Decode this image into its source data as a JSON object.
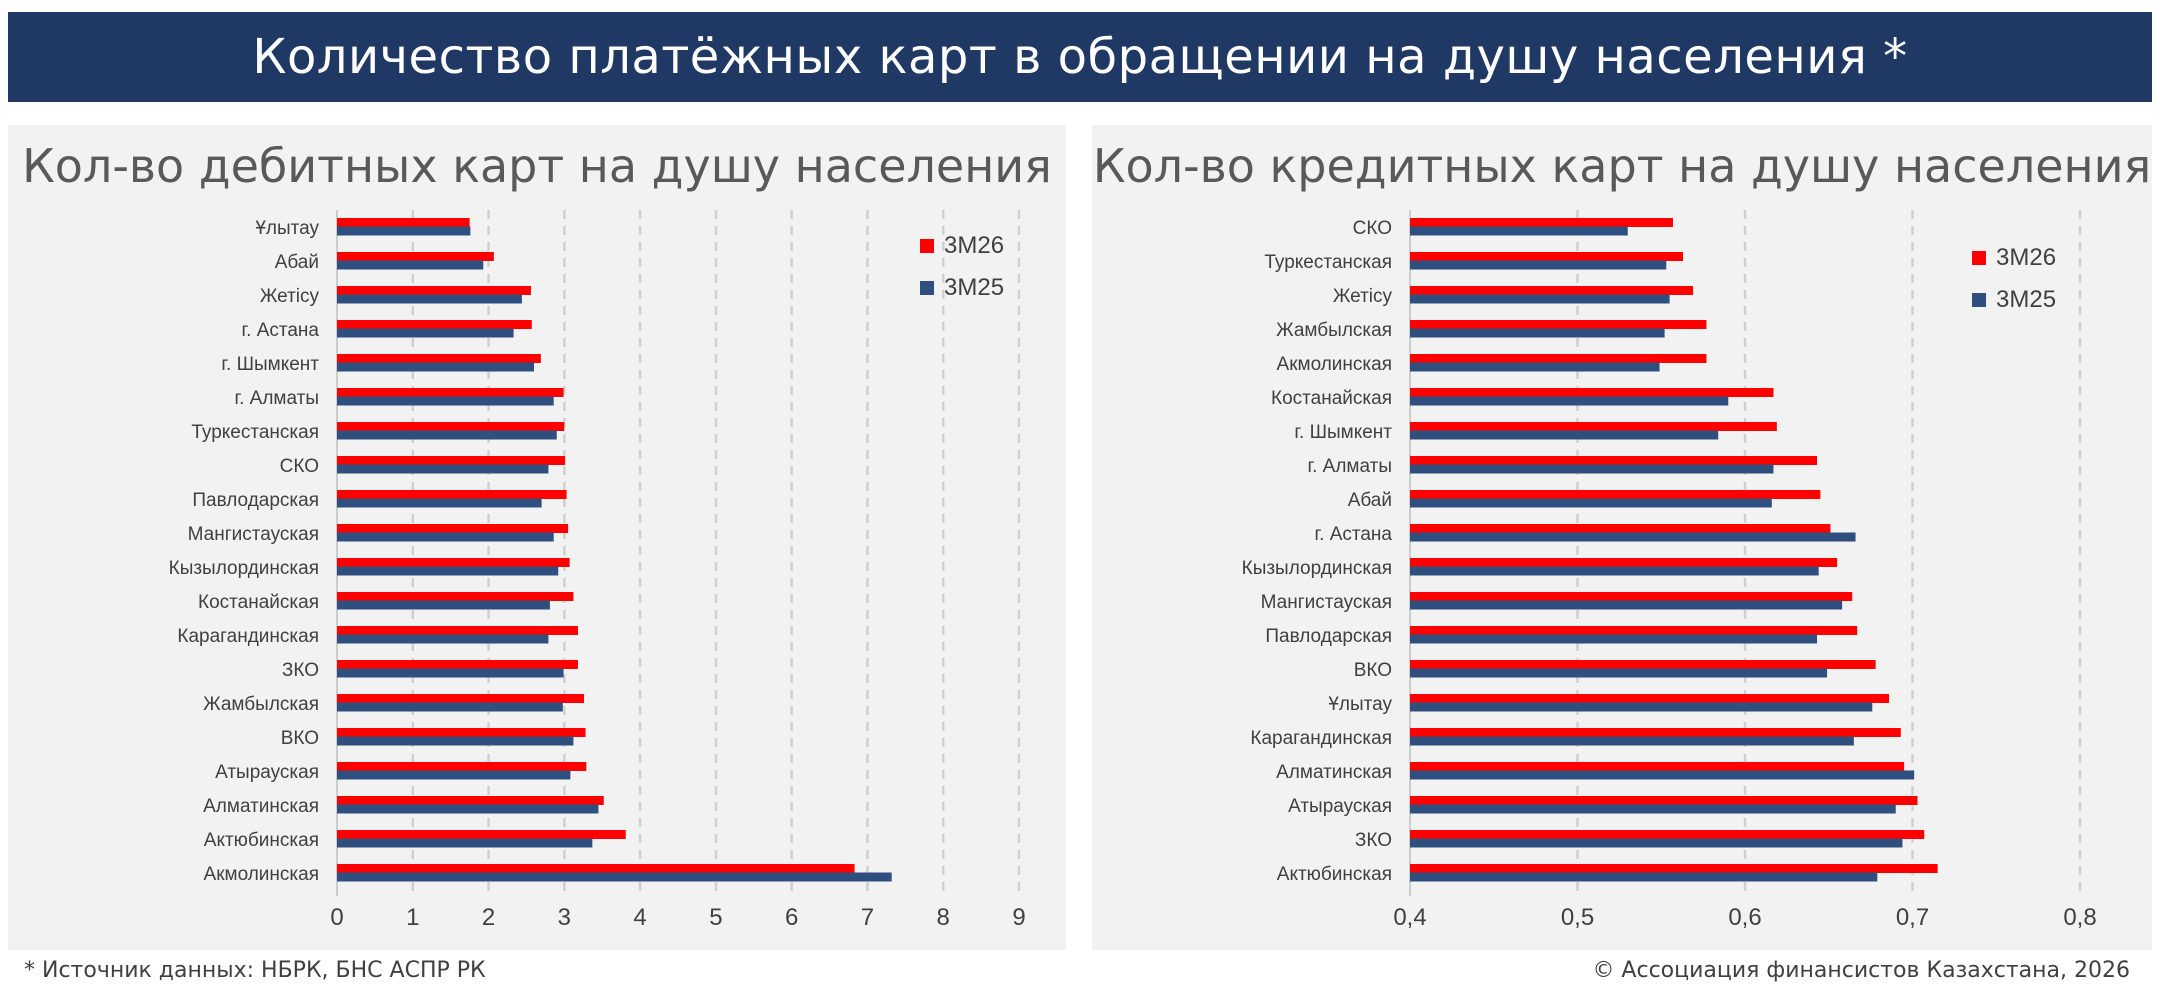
{
  "header": {
    "title": "Количество платёжных карт в обращении на душу населения *"
  },
  "footer": {
    "source": "* Источник данных: НБРК, БНС АСПР РК",
    "copyright": "© Ассоциация финансистов Казахстана, 2026"
  },
  "colors": {
    "header_bg": "#1f3864",
    "series_3m26": "#ff0000",
    "series_3m25": "#2f4f7f",
    "panel_bg": "#f2f2f2"
  },
  "chart_data": [
    {
      "type": "bar",
      "orientation": "horizontal",
      "title": "Кол-во дебитных карт на душу населения",
      "xlabel": "",
      "ylabel": "",
      "xlim": [
        0,
        9
      ],
      "ticks": [
        "0",
        "1",
        "2",
        "3",
        "4",
        "5",
        "6",
        "7",
        "8",
        "9"
      ],
      "grid": "vertical dashed",
      "legend": "top-right",
      "categories": [
        "Ұлытау",
        "Абай",
        "Жетісу",
        "г. Астана",
        "г. Шымкент",
        "г. Алматы",
        "Туркестанская",
        "СКО",
        "Павлодарская",
        "Мангистауская",
        "Кызылординская",
        "Костанайская",
        "Карагандинская",
        "ЗКО",
        "Жамбылская",
        "ВКО",
        "Атырауская",
        "Алматинская",
        "Актюбинская",
        "Акмолинская"
      ],
      "series": [
        {
          "name": "3М26",
          "values": [
            1.75,
            2.07,
            2.56,
            2.57,
            2.69,
            2.99,
            3.0,
            3.01,
            3.03,
            3.05,
            3.07,
            3.12,
            3.18,
            3.18,
            3.26,
            3.28,
            3.29,
            3.52,
            3.81,
            6.83
          ]
        },
        {
          "name": "3М25",
          "values": [
            1.76,
            1.93,
            2.44,
            2.33,
            2.6,
            2.86,
            2.9,
            2.79,
            2.7,
            2.86,
            2.92,
            2.81,
            2.79,
            2.99,
            2.98,
            3.12,
            3.08,
            3.45,
            3.37,
            7.32
          ]
        }
      ]
    },
    {
      "type": "bar",
      "orientation": "horizontal",
      "title": "Кол-во кредитных карт на душу населения",
      "xlabel": "",
      "ylabel": "",
      "xlim": [
        0.4,
        0.8
      ],
      "ticks": [
        "0,4",
        "0,5",
        "0,6",
        "0,7",
        "0,8"
      ],
      "grid": "vertical dashed",
      "legend": "top-right",
      "categories": [
        "СКО",
        "Туркестанская",
        "Жетісу",
        "Жамбылская",
        "Акмолинская",
        "Костанайская",
        "г. Шымкент",
        "г. Алматы",
        "Абай",
        "г. Астана",
        "Кызылординская",
        "Мангистауская",
        "Павлодарская",
        "ВКО",
        "Ұлытау",
        "Карагандинская",
        "Алматинская",
        "Атырауская",
        "ЗКО",
        "Актюбинская"
      ],
      "series": [
        {
          "name": "3М26",
          "values": [
            0.557,
            0.563,
            0.569,
            0.577,
            0.577,
            0.617,
            0.619,
            0.643,
            0.645,
            0.651,
            0.655,
            0.664,
            0.667,
            0.678,
            0.686,
            0.693,
            0.695,
            0.703,
            0.707,
            0.715
          ]
        },
        {
          "name": "3М25",
          "values": [
            0.53,
            0.553,
            0.555,
            0.552,
            0.549,
            0.59,
            0.584,
            0.617,
            0.616,
            0.666,
            0.644,
            0.658,
            0.643,
            0.649,
            0.676,
            0.665,
            0.701,
            0.69,
            0.694,
            0.679
          ]
        }
      ]
    }
  ]
}
